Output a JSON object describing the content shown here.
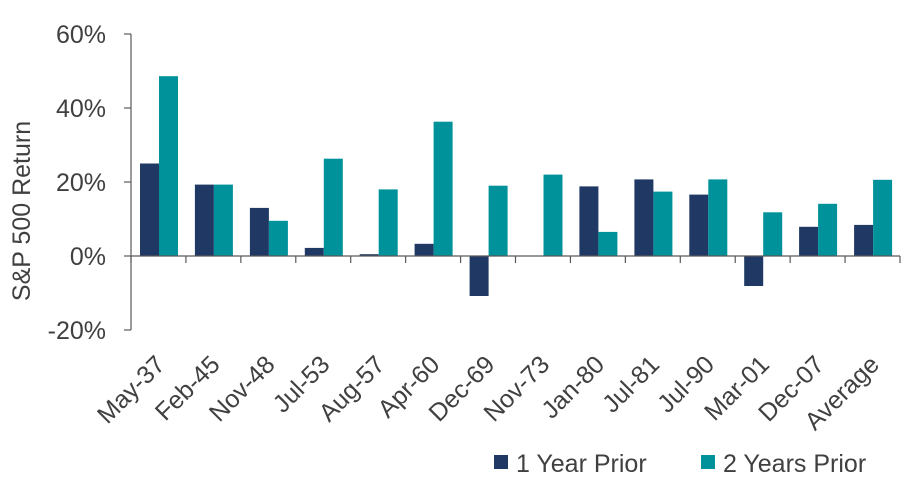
{
  "chart_data": {
    "type": "bar",
    "title": "",
    "xlabel": "",
    "ylabel": "S&P 500 Return",
    "categories": [
      "May-37",
      "Feb-45",
      "Nov-48",
      "Jul-53",
      "Aug-57",
      "Apr-60",
      "Dec-69",
      "Nov-73",
      "Jan-80",
      "Jul-81",
      "Jul-90",
      "Mar-01",
      "Dec-07",
      "Average"
    ],
    "series": [
      {
        "name": "1 Year Prior",
        "color": "#1f3864",
        "values": [
          25.0,
          19.3,
          13.0,
          2.2,
          0.5,
          3.3,
          -10.8,
          0.0,
          18.8,
          20.7,
          16.6,
          -8.1,
          7.9,
          8.4
        ]
      },
      {
        "name": "2 Years Prior",
        "color": "#00929b",
        "values": [
          48.6,
          19.3,
          9.5,
          26.3,
          18.0,
          36.3,
          19.0,
          22.0,
          6.5,
          17.4,
          20.7,
          11.8,
          14.1,
          20.6
        ]
      }
    ],
    "ylim": [
      -20,
      60
    ],
    "yticks": [
      -20,
      0,
      20,
      40,
      60
    ],
    "ytick_labels": [
      "-20%",
      "0%",
      "20%",
      "40%",
      "60%"
    ],
    "grid": false,
    "legend_position": "bottom-right"
  }
}
